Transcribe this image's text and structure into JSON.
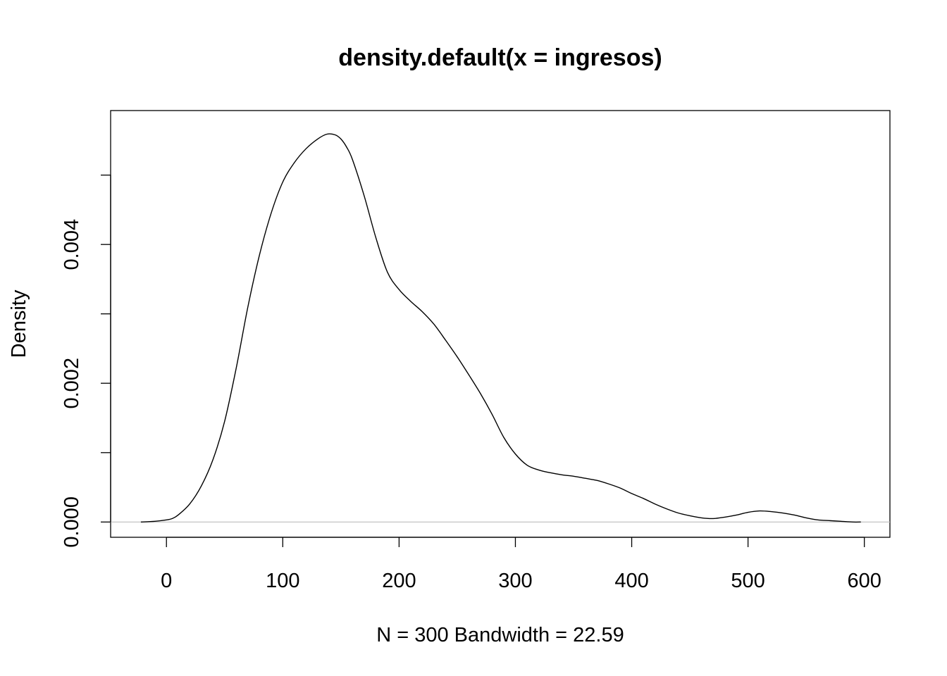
{
  "chart_data": {
    "type": "line",
    "title": "density.default(x = ingresos)",
    "xlabel": "N = 300   Bandwidth = 22.59",
    "ylabel": "Density",
    "xlim": [
      -48,
      622
    ],
    "ylim": [
      -0.00022,
      0.00593
    ],
    "x_ticks": [
      0,
      100,
      200,
      300,
      400,
      500,
      600
    ],
    "x_tick_labels": [
      "0",
      "100",
      "200",
      "300",
      "400",
      "500",
      "600"
    ],
    "y_ticks": [
      0.0,
      0.001,
      0.002,
      0.003,
      0.004,
      0.005
    ],
    "y_tick_labels": [
      "0.000",
      "",
      "0.002",
      "",
      "0.004",
      ""
    ],
    "baseline_y": 0,
    "series": [
      {
        "x": [
          -22,
          -10,
          0,
          5,
          10,
          20,
          30,
          40,
          50,
          60,
          70,
          80,
          90,
          100,
          110,
          120,
          130,
          138,
          145,
          150,
          155,
          160,
          170,
          180,
          190,
          200,
          210,
          220,
          230,
          240,
          250,
          260,
          270,
          280,
          290,
          300,
          310,
          320,
          330,
          340,
          350,
          360,
          370,
          380,
          390,
          400,
          410,
          420,
          430,
          440,
          450,
          460,
          470,
          480,
          490,
          500,
          510,
          520,
          530,
          540,
          550,
          560,
          570,
          580,
          590,
          597
        ],
        "y": [
          0.0,
          1e-05,
          3e-05,
          5e-05,
          0.0001,
          0.00026,
          0.00052,
          0.0009,
          0.00145,
          0.00222,
          0.0031,
          0.00385,
          0.00445,
          0.0049,
          0.00518,
          0.00538,
          0.00552,
          0.00559,
          0.00558,
          0.00552,
          0.0054,
          0.00522,
          0.0047,
          0.0041,
          0.0036,
          0.00335,
          0.00318,
          0.00303,
          0.00285,
          0.00262,
          0.00238,
          0.00212,
          0.00185,
          0.00155,
          0.00122,
          0.00098,
          0.00082,
          0.00075,
          0.00071,
          0.00068,
          0.00066,
          0.00063,
          0.0006,
          0.00055,
          0.00049,
          0.00041,
          0.00034,
          0.00026,
          0.00019,
          0.00013,
          9e-05,
          6e-05,
          5e-05,
          7e-05,
          0.0001,
          0.00014,
          0.00016,
          0.00015,
          0.00013,
          0.0001,
          6e-05,
          3e-05,
          2e-05,
          1e-05,
          0.0,
          0.0
        ]
      }
    ]
  }
}
